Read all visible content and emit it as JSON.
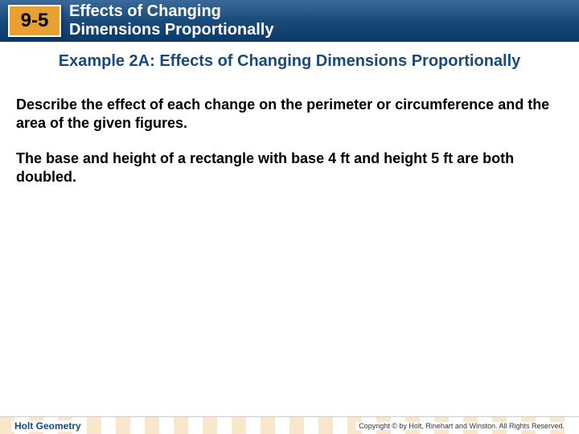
{
  "header": {
    "section_number": "9-5",
    "title_line1": "Effects of Changing",
    "title_line2": "Dimensions Proportionally",
    "bar_gradient_top": "#3a6a9a",
    "bar_gradient_bottom": "#0a3a6a",
    "box_bg": "#e8a030",
    "box_border": "#ffffff",
    "title_color": "#ffffff"
  },
  "example": {
    "title": "Example 2A: Effects of Changing Dimensions Proportionally",
    "title_color": "#1a4a7a"
  },
  "body": {
    "instruction": "Describe the effect of each change on the perimeter or circumference and the area of the given figures.",
    "problem": "The base and height of a rectangle with base 4 ft and height 5 ft are both doubled.",
    "text_color": "#000000",
    "font_size": 18
  },
  "footer": {
    "left": "Holt Geometry",
    "right": "Copyright © by Holt, Rinehart and Winston. All Rights Reserved.",
    "stripe_color_a": "#e8a030",
    "stripe_color_b": "#ffffff",
    "left_color": "#1a4a7a"
  }
}
